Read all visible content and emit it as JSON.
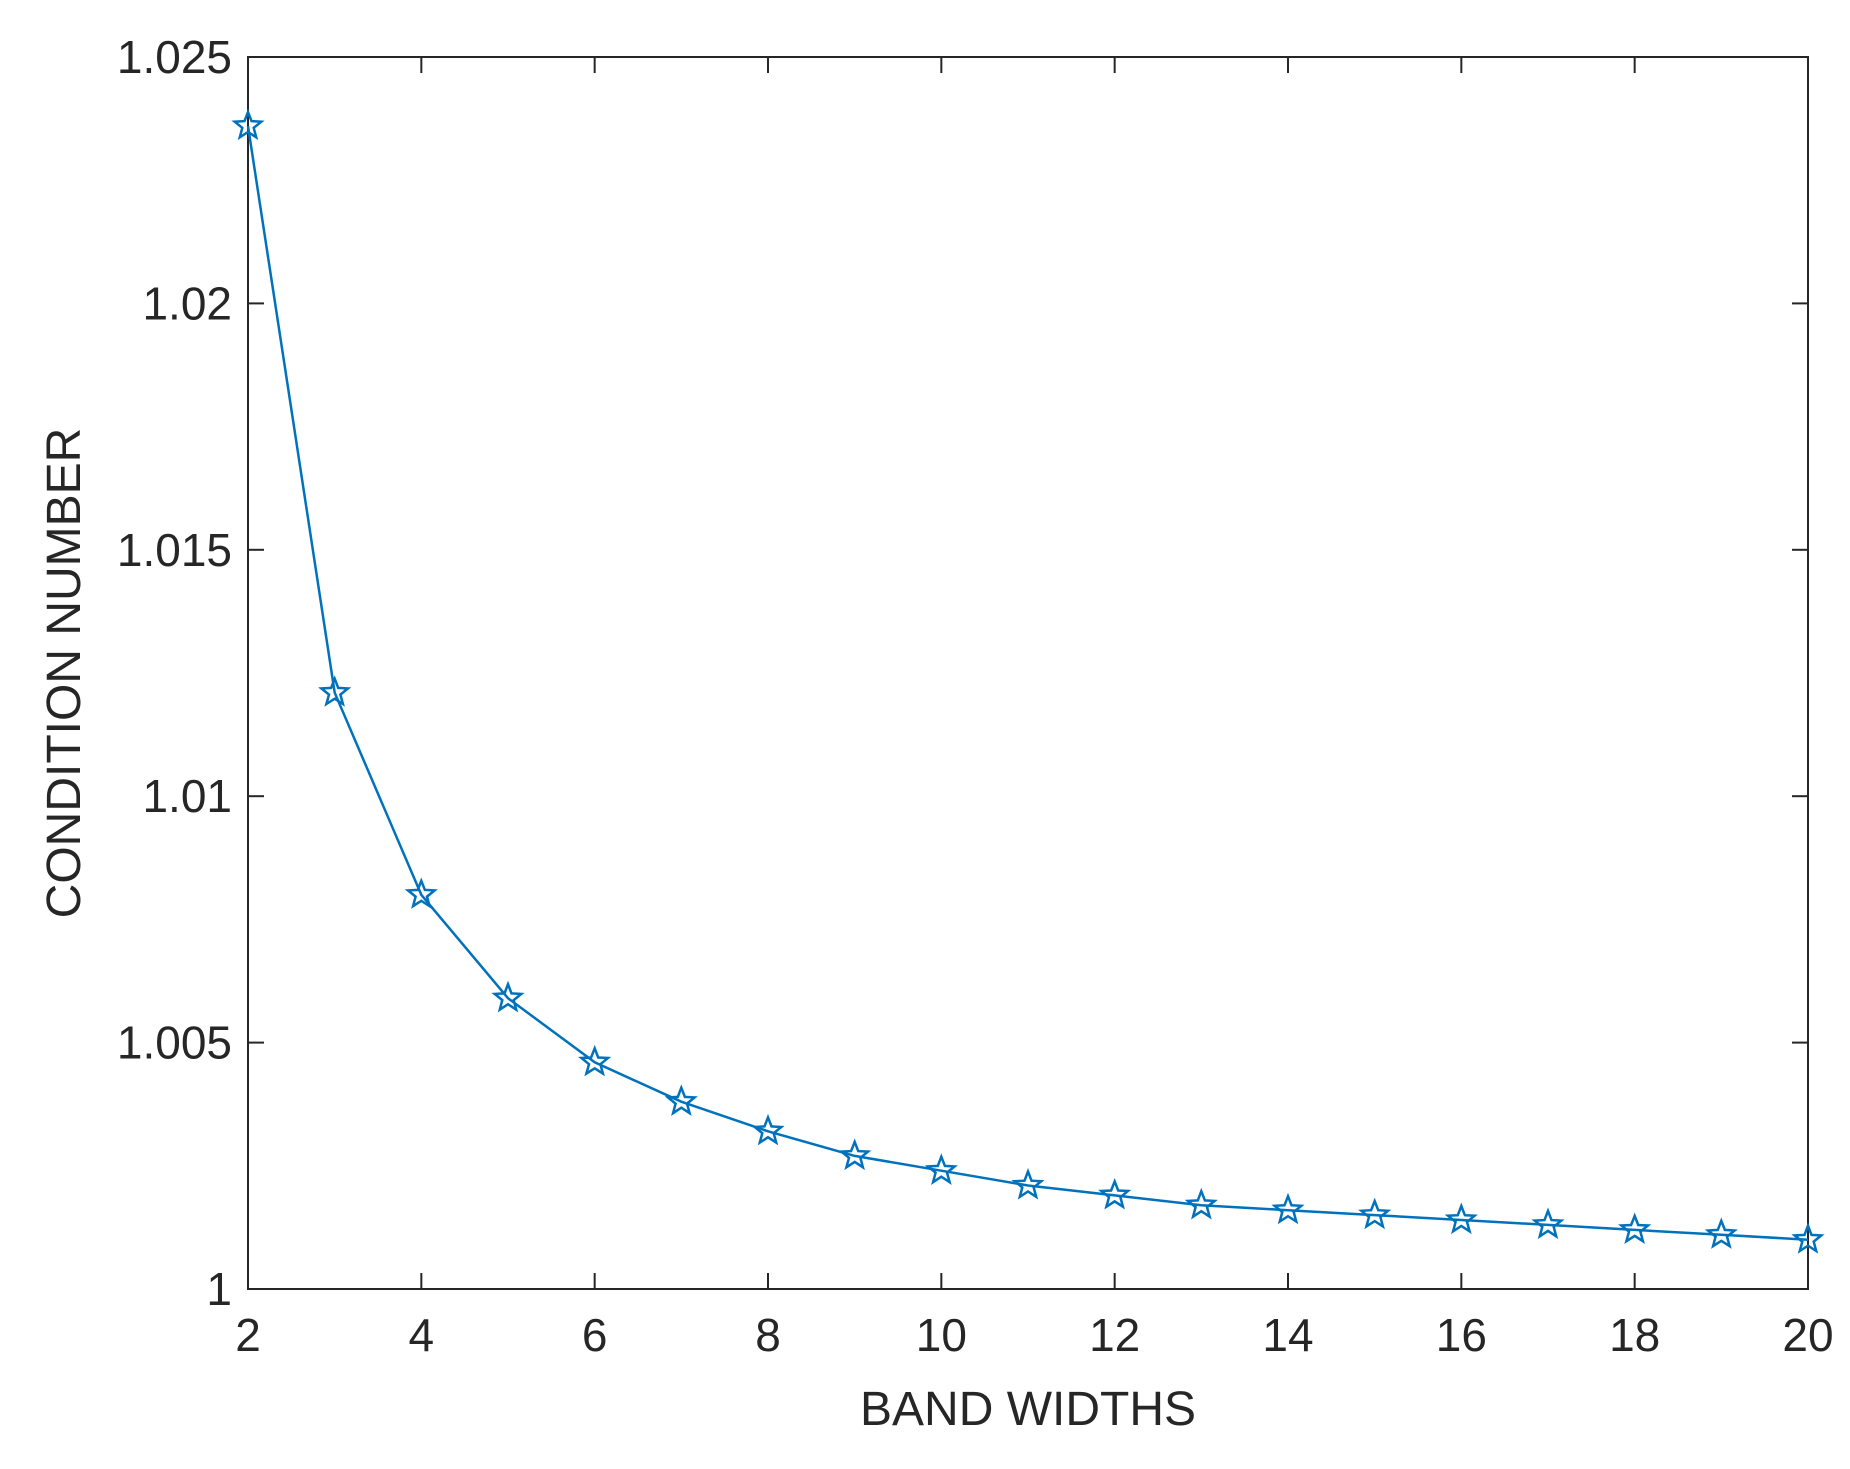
{
  "chart_data": {
    "type": "line",
    "xlabel": "BAND WIDTHS",
    "ylabel": "CONDITION NUMBER",
    "xlim": [
      2,
      20
    ],
    "ylim": [
      1,
      1.025
    ],
    "xticks": [
      2,
      4,
      6,
      8,
      10,
      12,
      14,
      16,
      18,
      20
    ],
    "xtick_labels": [
      "2",
      "4",
      "6",
      "8",
      "10",
      "12",
      "14",
      "16",
      "18",
      "20"
    ],
    "yticks": [
      1,
      1.005,
      1.01,
      1.015,
      1.02,
      1.025
    ],
    "ytick_labels": [
      "1",
      "1.005",
      "1.01",
      "1.015",
      "1.02",
      "1.025"
    ],
    "grid": false,
    "box": true,
    "series": [
      {
        "marker": "star",
        "color": "#0072BD",
        "x": [
          2,
          3,
          4,
          5,
          6,
          7,
          8,
          9,
          10,
          11,
          12,
          13,
          14,
          15,
          16,
          17,
          18,
          19,
          20
        ],
        "y": [
          1.0236,
          1.0121,
          1.008,
          1.0059,
          1.0046,
          1.0038,
          1.0032,
          1.0027,
          1.0024,
          1.0021,
          1.0019,
          1.0017,
          1.0016,
          1.0015,
          1.0014,
          1.0013,
          1.0012,
          1.0011,
          1.001
        ]
      }
    ]
  }
}
